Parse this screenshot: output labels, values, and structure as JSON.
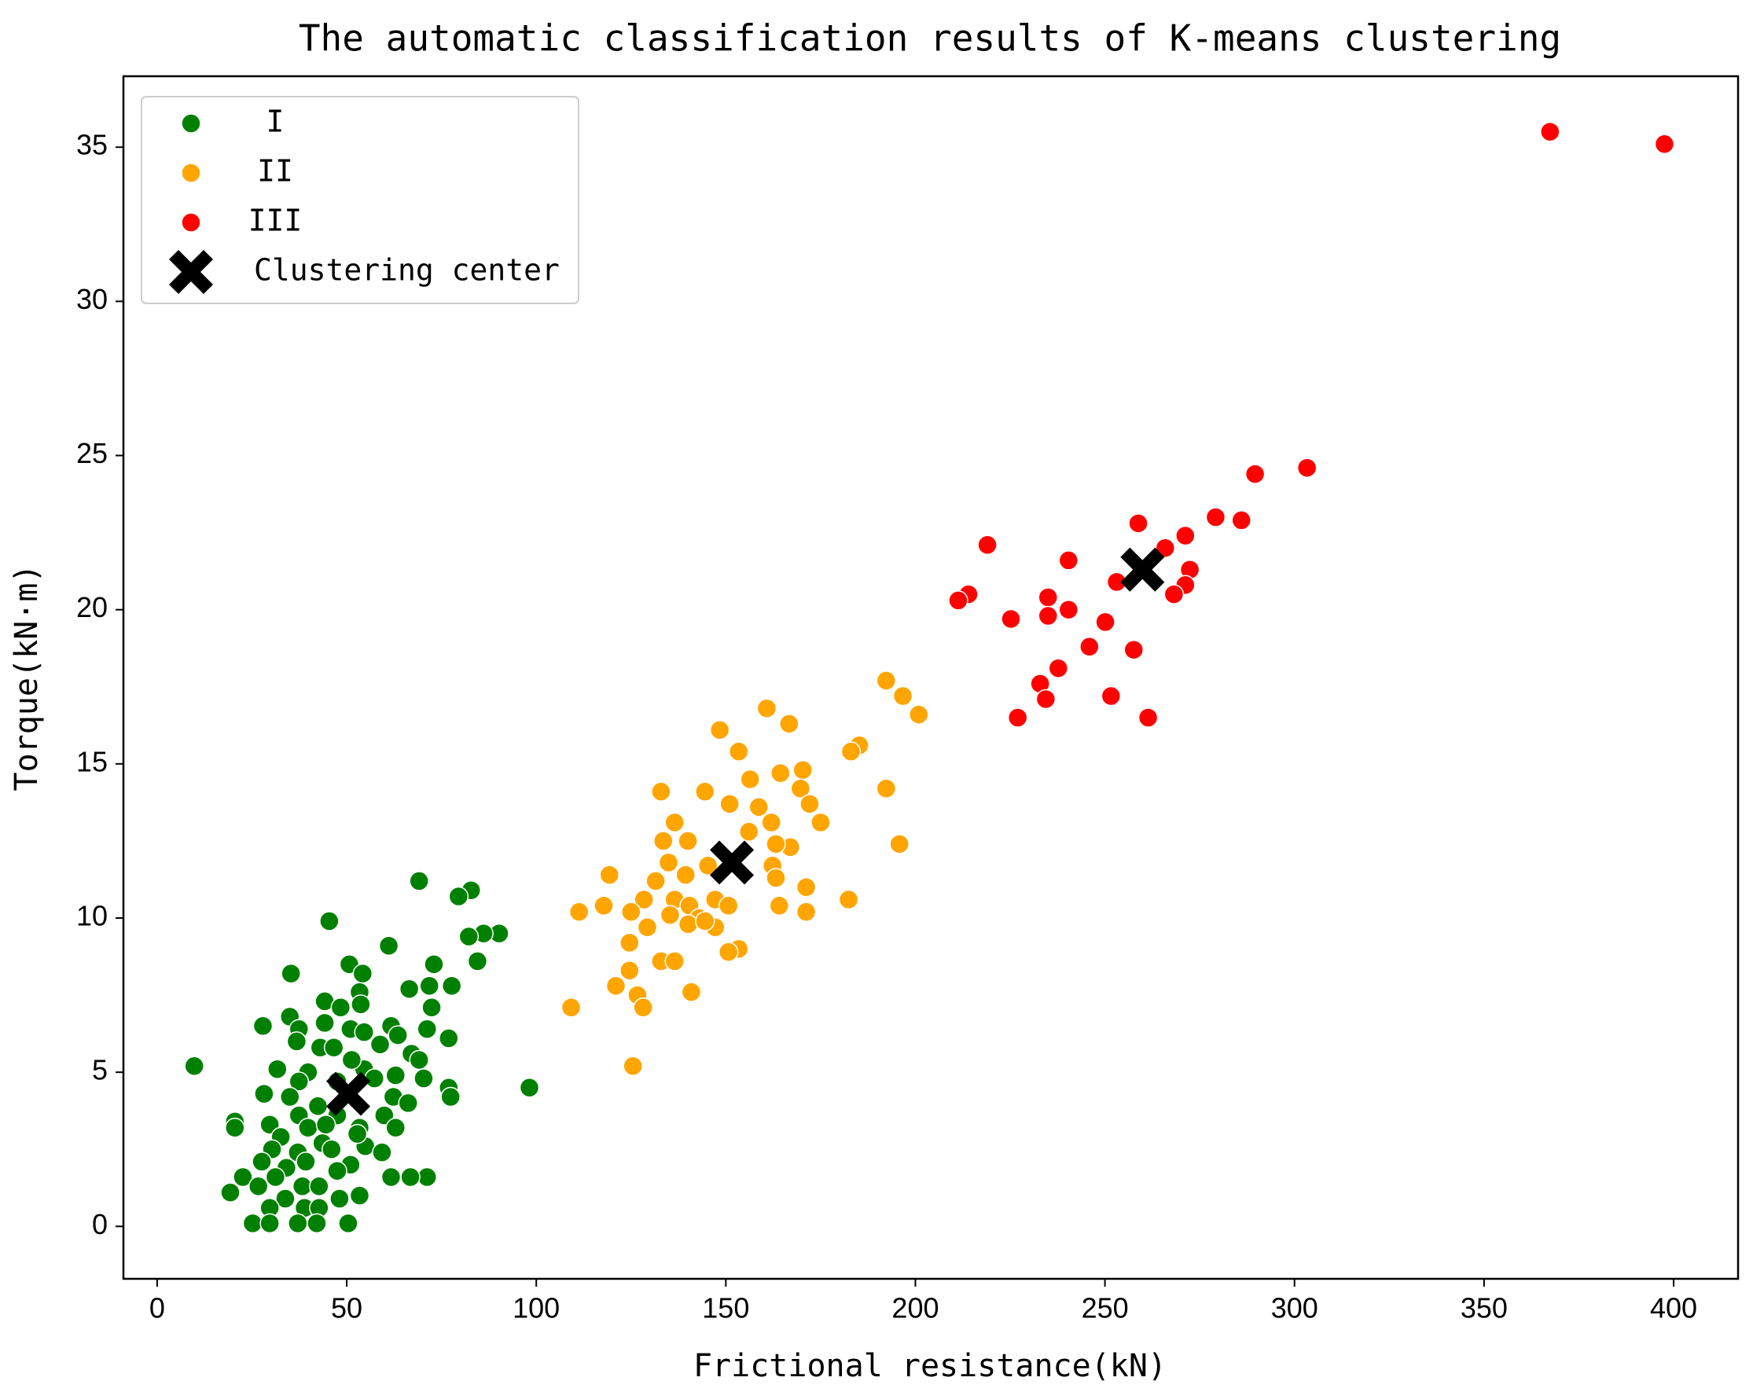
{
  "chart_data": {
    "type": "scatter",
    "title": "The automatic classification results of K-means clustering",
    "x_label": "Frictional resistance(kN)",
    "y_label": "Torque(kN·m)",
    "xlim": [
      -8.9,
      417
    ],
    "ylim": [
      -1.7,
      37.3
    ],
    "xticks": [
      0,
      50,
      100,
      150,
      200,
      250,
      300,
      350,
      400
    ],
    "yticks": [
      0,
      5,
      10,
      15,
      20,
      25,
      30,
      35
    ],
    "legend": "upper left",
    "series": [
      {
        "name": "I",
        "color": "#008000",
        "marker": "circle",
        "x": [
          69.1,
          82.8,
          79.5,
          45.4,
          90.2,
          86.1,
          82.2,
          61.1,
          84.5,
          50.7,
          73,
          35.3,
          54.2,
          77.7,
          66.5,
          71.8,
          53.4,
          44.2,
          35,
          48.4,
          53.7,
          72.4,
          27.9,
          37.4,
          44.2,
          51,
          61.7,
          71.2,
          54.6,
          63.5,
          76.9,
          36.8,
          43,
          58.8,
          67.1,
          69.1,
          9.8,
          31.7,
          39.8,
          54.6,
          62.9,
          37.4,
          47.5,
          70.3,
          76.9,
          98.2,
          28.2,
          35,
          62.3,
          77.4,
          42.4,
          66.2,
          20.5,
          37.4,
          47.5,
          59.9,
          29.7,
          39.8,
          53.4,
          62.9,
          20.5,
          32.6,
          43.6,
          54.9,
          30.3,
          37.1,
          46,
          59.3,
          39.2,
          27.6,
          51,
          34.1,
          47.5,
          61.7,
          71.2,
          66.8,
          22.6,
          31.2,
          38.3,
          26.7,
          42.7,
          19.3,
          53.4,
          48.1,
          33.8,
          38.9,
          29.7,
          42.7,
          25.2,
          29.7,
          37.1,
          42.1,
          50.4,
          46.6,
          51.3,
          57.3,
          52.8,
          44.5
        ],
        "values": [
          11.2,
          10.9,
          10.7,
          9.9,
          9.5,
          9.5,
          9.4,
          9.1,
          8.6,
          8.5,
          8.5,
          8.2,
          8.2,
          7.8,
          7.7,
          7.8,
          7.6,
          7.3,
          6.8,
          7.1,
          7.2,
          7.1,
          6.5,
          6.4,
          6.6,
          6.4,
          6.5,
          6.4,
          6.3,
          6.2,
          6.1,
          6.0,
          5.8,
          5.9,
          5.6,
          5.4,
          5.2,
          5.1,
          5.0,
          5.1,
          4.9,
          4.7,
          4.7,
          4.8,
          4.5,
          4.5,
          4.3,
          4.2,
          4.2,
          4.2,
          3.9,
          4.0,
          3.4,
          3.6,
          3.6,
          3.6,
          3.3,
          3.2,
          3.2,
          3.2,
          3.2,
          2.9,
          2.7,
          2.6,
          2.5,
          2.4,
          2.5,
          2.4,
          2.1,
          2.1,
          2.0,
          1.9,
          1.8,
          1.6,
          1.6,
          1.6,
          1.6,
          1.6,
          1.3,
          1.3,
          1.3,
          1.1,
          1.0,
          0.9,
          0.9,
          0.6,
          0.6,
          0.6,
          0.1,
          0.1,
          0.1,
          0.1,
          0.1,
          5.8,
          5.4,
          4.8,
          3.0,
          3.3
        ]
      },
      {
        "name": "II",
        "color": "#ffa500",
        "marker": "circle",
        "x": [
          192.3,
          196.7,
          200.9,
          160.8,
          166.7,
          148.4,
          153.4,
          185.2,
          183,
          164.4,
          170.3,
          156.4,
          132.9,
          144.5,
          192.3,
          169.7,
          151,
          158.7,
          172.1,
          162,
          175,
          136.5,
          156.1,
          133.5,
          140,
          167,
          163.2,
          195.8,
          134.9,
          145.3,
          162.3,
          139.4,
          119.3,
          131.5,
          163.2,
          171.2,
          128.4,
          136.5,
          147.2,
          140.4,
          150.7,
          182.4,
          117.8,
          111.3,
          125,
          164.1,
          171.2,
          135.3,
          143,
          129.3,
          140.1,
          147.2,
          124.6,
          153.4,
          150.7,
          132.9,
          136.5,
          124.6,
          121,
          140.9,
          126.7,
          128.2,
          109.2,
          125.5,
          144.5
        ],
        "values": [
          17.7,
          17.2,
          16.6,
          16.8,
          16.3,
          16.1,
          15.4,
          15.6,
          15.4,
          14.7,
          14.8,
          14.5,
          14.1,
          14.1,
          14.2,
          14.2,
          13.7,
          13.6,
          13.7,
          13.1,
          13.1,
          13.1,
          12.8,
          12.5,
          12.5,
          12.3,
          12.4,
          12.4,
          11.8,
          11.7,
          11.7,
          11.4,
          11.4,
          11.2,
          11.3,
          11.0,
          10.6,
          10.6,
          10.6,
          10.4,
          10.4,
          10.6,
          10.4,
          10.2,
          10.2,
          10.4,
          10.2,
          10.1,
          10.0,
          9.7,
          9.8,
          9.7,
          9.2,
          9.0,
          8.9,
          8.6,
          8.6,
          8.3,
          7.8,
          7.6,
          7.5,
          7.1,
          7.1,
          5.2,
          9.9
        ]
      },
      {
        "name": "III",
        "color": "#ff0000",
        "marker": "circle",
        "x": [
          367.4,
          397.6,
          303.3,
          289.6,
          279.2,
          286,
          258.8,
          271.2,
          265.9,
          219,
          240.4,
          272.4,
          253.1,
          271.2,
          268.2,
          214,
          211.3,
          235,
          240.4,
          235,
          225.2,
          250.1,
          245.9,
          257.6,
          237.7,
          232.9,
          251.6,
          234.4,
          227,
          261.4
        ],
        "values": [
          35.5,
          35.1,
          24.6,
          24.4,
          23.0,
          22.9,
          22.8,
          22.4,
          22.0,
          22.1,
          21.6,
          21.3,
          20.9,
          20.8,
          20.5,
          20.5,
          20.3,
          20.4,
          20.0,
          19.8,
          19.7,
          19.6,
          18.8,
          18.7,
          18.1,
          17.6,
          17.2,
          17.1,
          16.5,
          16.5
        ]
      },
      {
        "name": "Clustering center",
        "color": "#000000",
        "marker": "x",
        "x": [
          50.4,
          151.6,
          259.9
        ],
        "values": [
          4.3,
          11.8,
          21.3
        ]
      }
    ]
  }
}
